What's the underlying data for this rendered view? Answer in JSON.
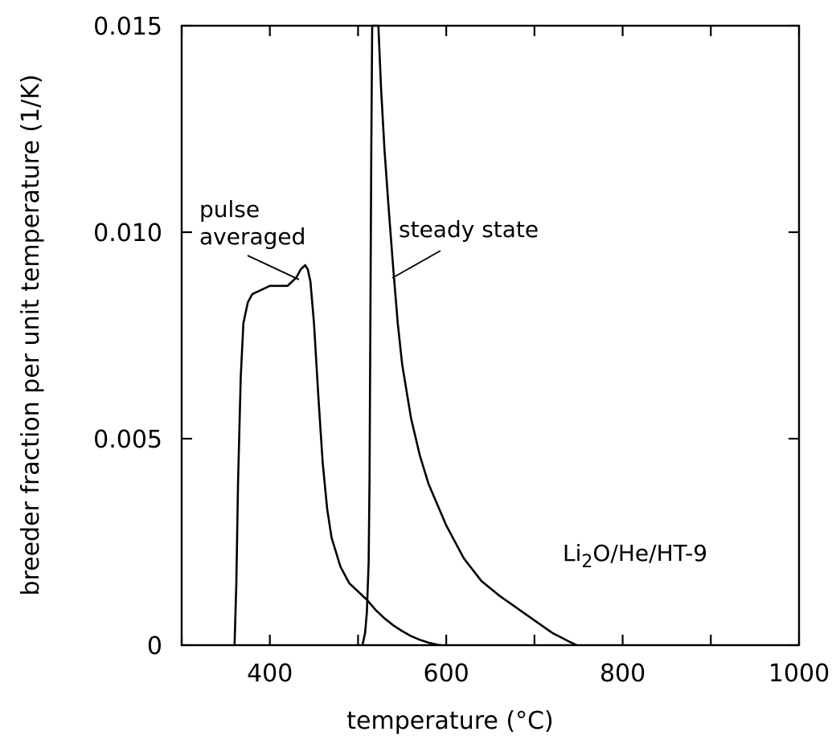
{
  "chart_data": {
    "type": "line",
    "xlabel": "temperature (°C)",
    "ylabel": "breeder fraction per unit temperature (1/K)",
    "xlim": [
      300,
      1000
    ],
    "ylim": [
      0,
      0.015
    ],
    "x_ticks": [
      400,
      600,
      800,
      1000
    ],
    "x_tick_labels": [
      "400",
      "600",
      "800",
      "1000"
    ],
    "x_minor_ticks": [
      300,
      500,
      700,
      900
    ],
    "y_ticks": [
      0,
      0.005,
      0.01,
      0.015
    ],
    "y_tick_labels": [
      "0",
      "0.005",
      "0.010",
      "0.015"
    ],
    "grid": false,
    "legend": "none",
    "series": [
      {
        "name": "pulse averaged",
        "x": [
          360,
          362,
          364,
          367,
          370,
          375,
          380,
          390,
          400,
          410,
          420,
          425,
          430,
          435,
          440,
          443,
          446,
          450,
          455,
          460,
          465,
          470,
          480,
          490,
          500,
          510,
          520,
          530,
          540,
          550,
          560,
          570,
          580,
          590,
          595
        ],
        "y": [
          0,
          0.0015,
          0.004,
          0.0065,
          0.0078,
          0.0083,
          0.0085,
          0.0086,
          0.0087,
          0.0087,
          0.0087,
          0.0088,
          0.0089,
          0.0091,
          0.0092,
          0.0091,
          0.0088,
          0.0078,
          0.006,
          0.0044,
          0.0033,
          0.0026,
          0.0019,
          0.0015,
          0.0013,
          0.0011,
          0.00085,
          0.00065,
          0.00048,
          0.00034,
          0.00022,
          0.00013,
          6e-05,
          1e-05,
          0
        ]
      },
      {
        "name": "steady state",
        "x": [
          505,
          508,
          510,
          512,
          513,
          514,
          515,
          516,
          520,
          523,
          526,
          530,
          535,
          540,
          545,
          550,
          560,
          570,
          580,
          600,
          620,
          640,
          660,
          680,
          700,
          720,
          740,
          748
        ],
        "y": [
          0,
          0.0003,
          0.0008,
          0.002,
          0.004,
          0.008,
          0.012,
          0.015,
          0.015,
          0.0152,
          0.0135,
          0.012,
          0.0105,
          0.0091,
          0.0078,
          0.0068,
          0.0055,
          0.0046,
          0.0039,
          0.0029,
          0.0021,
          0.00155,
          0.0012,
          0.0009,
          0.0006,
          0.0003,
          8e-05,
          0
        ]
      }
    ],
    "annotations": [
      {
        "lines": [
          "pulse",
          "averaged"
        ],
        "points_to_series": "pulse averaged"
      },
      {
        "lines": [
          "steady state"
        ],
        "points_to_series": "steady state"
      }
    ],
    "inset_label": {
      "prefix": "Li",
      "sub": "2",
      "suffix": "O/He/HT-9"
    }
  }
}
